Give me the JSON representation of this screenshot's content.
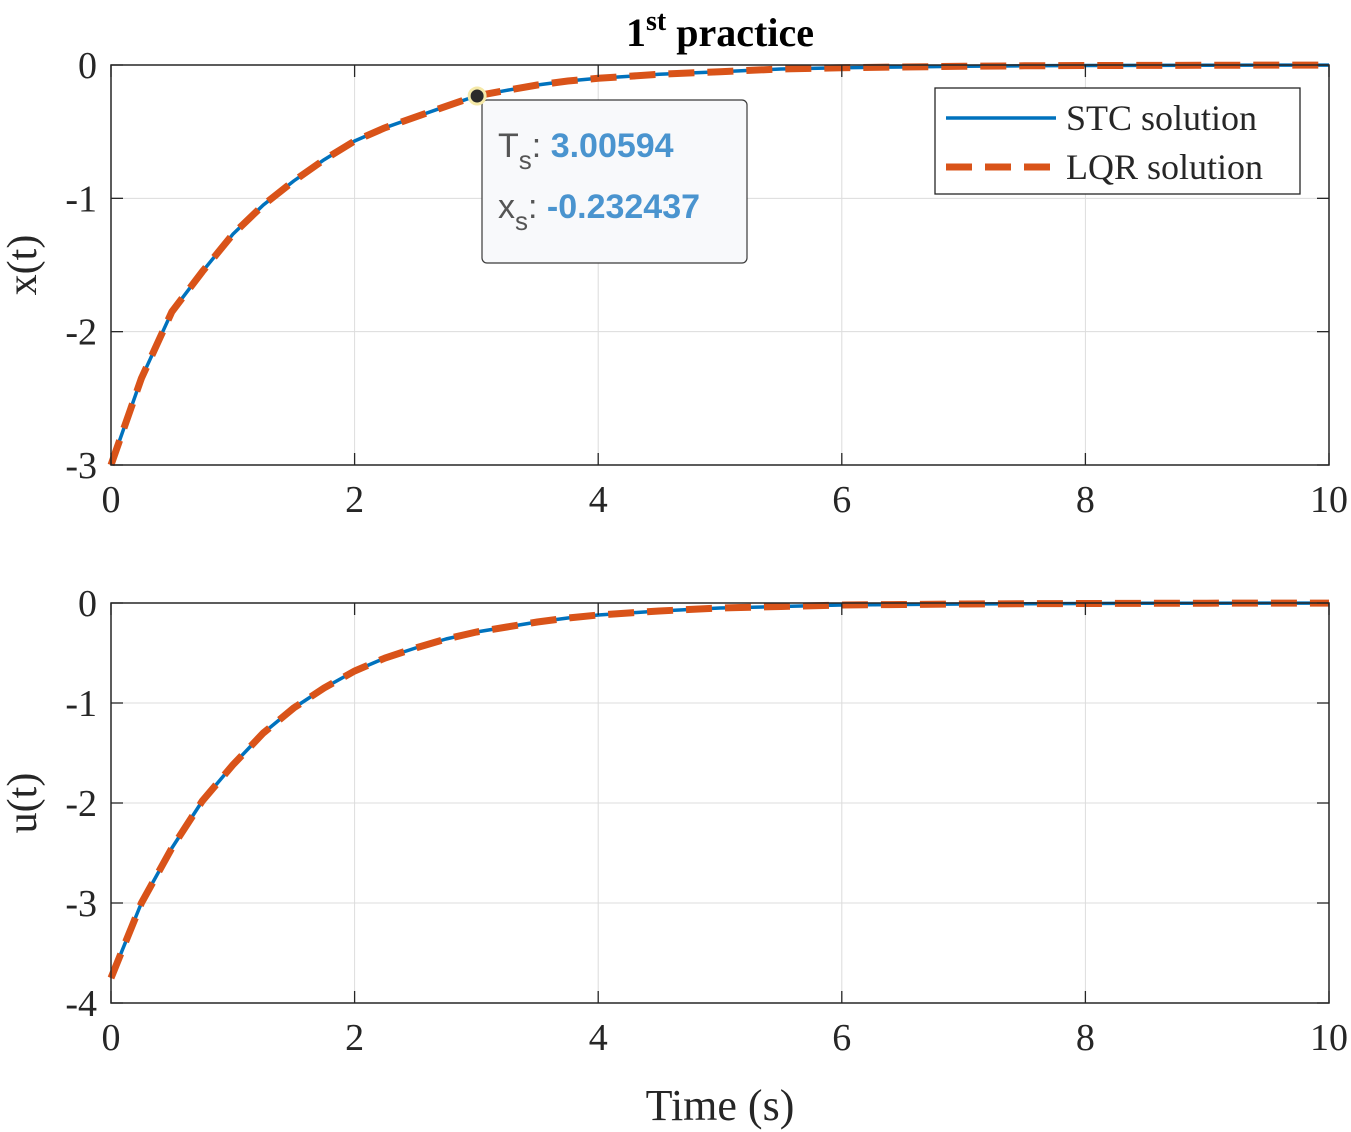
{
  "title": {
    "base": "1",
    "sup": "st",
    "rest": " practice"
  },
  "xlabel": "Time (s)",
  "colors": {
    "stc": "#0072BD",
    "lqr": "#D95319",
    "tip_value": "#4a94cf"
  },
  "legend": {
    "stc": "STC solution",
    "lqr": "LQR solution",
    "placement": "top-right of top subplot"
  },
  "datatip": {
    "t_label": "T",
    "t_sub": "s",
    "t_value": "3.00594",
    "x_label": "x",
    "x_sub": "s",
    "x_value": "-0.232437",
    "x": 3.00594,
    "y": -0.232437
  },
  "chart_data": [
    {
      "type": "line",
      "ylabel": "x(t)",
      "xlim": [
        0,
        10
      ],
      "ylim": [
        -3,
        0
      ],
      "xticks": [
        0,
        2,
        4,
        6,
        8,
        10
      ],
      "yticks": [
        0,
        -1,
        -2,
        -3
      ],
      "grid": true,
      "x": [
        0,
        0.25,
        0.5,
        0.75,
        1,
        1.25,
        1.5,
        1.75,
        2,
        2.25,
        2.5,
        2.75,
        3,
        3.25,
        3.5,
        3.75,
        4,
        4.5,
        5,
        5.5,
        6,
        6.5,
        7,
        7.5,
        8,
        8.5,
        9,
        9.5,
        10
      ],
      "series": [
        {
          "name": "STC solution",
          "values": [
            -3.0,
            -2.35,
            -1.85,
            -1.55,
            -1.27,
            -1.05,
            -0.87,
            -0.71,
            -0.57,
            -0.47,
            -0.39,
            -0.31,
            -0.232,
            -0.19,
            -0.15,
            -0.12,
            -0.1,
            -0.07,
            -0.05,
            -0.03,
            -0.02,
            -0.015,
            -0.01,
            -0.006,
            -0.004,
            -0.003,
            -0.002,
            -0.001,
            -0.001
          ]
        },
        {
          "name": "LQR solution",
          "values": [
            -3.0,
            -2.35,
            -1.85,
            -1.55,
            -1.27,
            -1.05,
            -0.87,
            -0.71,
            -0.57,
            -0.47,
            -0.39,
            -0.31,
            -0.232,
            -0.19,
            -0.15,
            -0.12,
            -0.1,
            -0.07,
            -0.05,
            -0.03,
            -0.02,
            -0.015,
            -0.01,
            -0.006,
            -0.004,
            -0.003,
            -0.002,
            -0.001,
            -0.001
          ]
        }
      ]
    },
    {
      "type": "line",
      "ylabel": "u(t)",
      "xlim": [
        0,
        10
      ],
      "ylim": [
        -4,
        0
      ],
      "xticks": [
        0,
        2,
        4,
        6,
        8,
        10
      ],
      "yticks": [
        0,
        -1,
        -2,
        -3,
        -4
      ],
      "grid": true,
      "x": [
        0,
        0.25,
        0.5,
        0.75,
        1,
        1.25,
        1.5,
        1.75,
        2,
        2.25,
        2.5,
        2.75,
        3,
        3.25,
        3.5,
        3.75,
        4,
        4.5,
        5,
        5.5,
        6,
        6.5,
        7,
        7.5,
        8,
        8.5,
        9,
        9.5,
        10
      ],
      "series": [
        {
          "name": "STC solution",
          "values": [
            -3.75,
            -3.0,
            -2.45,
            -1.98,
            -1.62,
            -1.3,
            -1.05,
            -0.85,
            -0.68,
            -0.55,
            -0.45,
            -0.36,
            -0.29,
            -0.24,
            -0.19,
            -0.15,
            -0.12,
            -0.08,
            -0.05,
            -0.035,
            -0.02,
            -0.015,
            -0.01,
            -0.007,
            -0.005,
            -0.003,
            -0.002,
            -0.001,
            -0.001
          ]
        },
        {
          "name": "LQR solution",
          "values": [
            -3.75,
            -3.0,
            -2.45,
            -1.98,
            -1.62,
            -1.3,
            -1.05,
            -0.85,
            -0.68,
            -0.55,
            -0.45,
            -0.36,
            -0.29,
            -0.24,
            -0.19,
            -0.15,
            -0.12,
            -0.08,
            -0.05,
            -0.035,
            -0.02,
            -0.015,
            -0.01,
            -0.007,
            -0.005,
            -0.003,
            -0.002,
            -0.001,
            -0.001
          ]
        }
      ]
    }
  ]
}
